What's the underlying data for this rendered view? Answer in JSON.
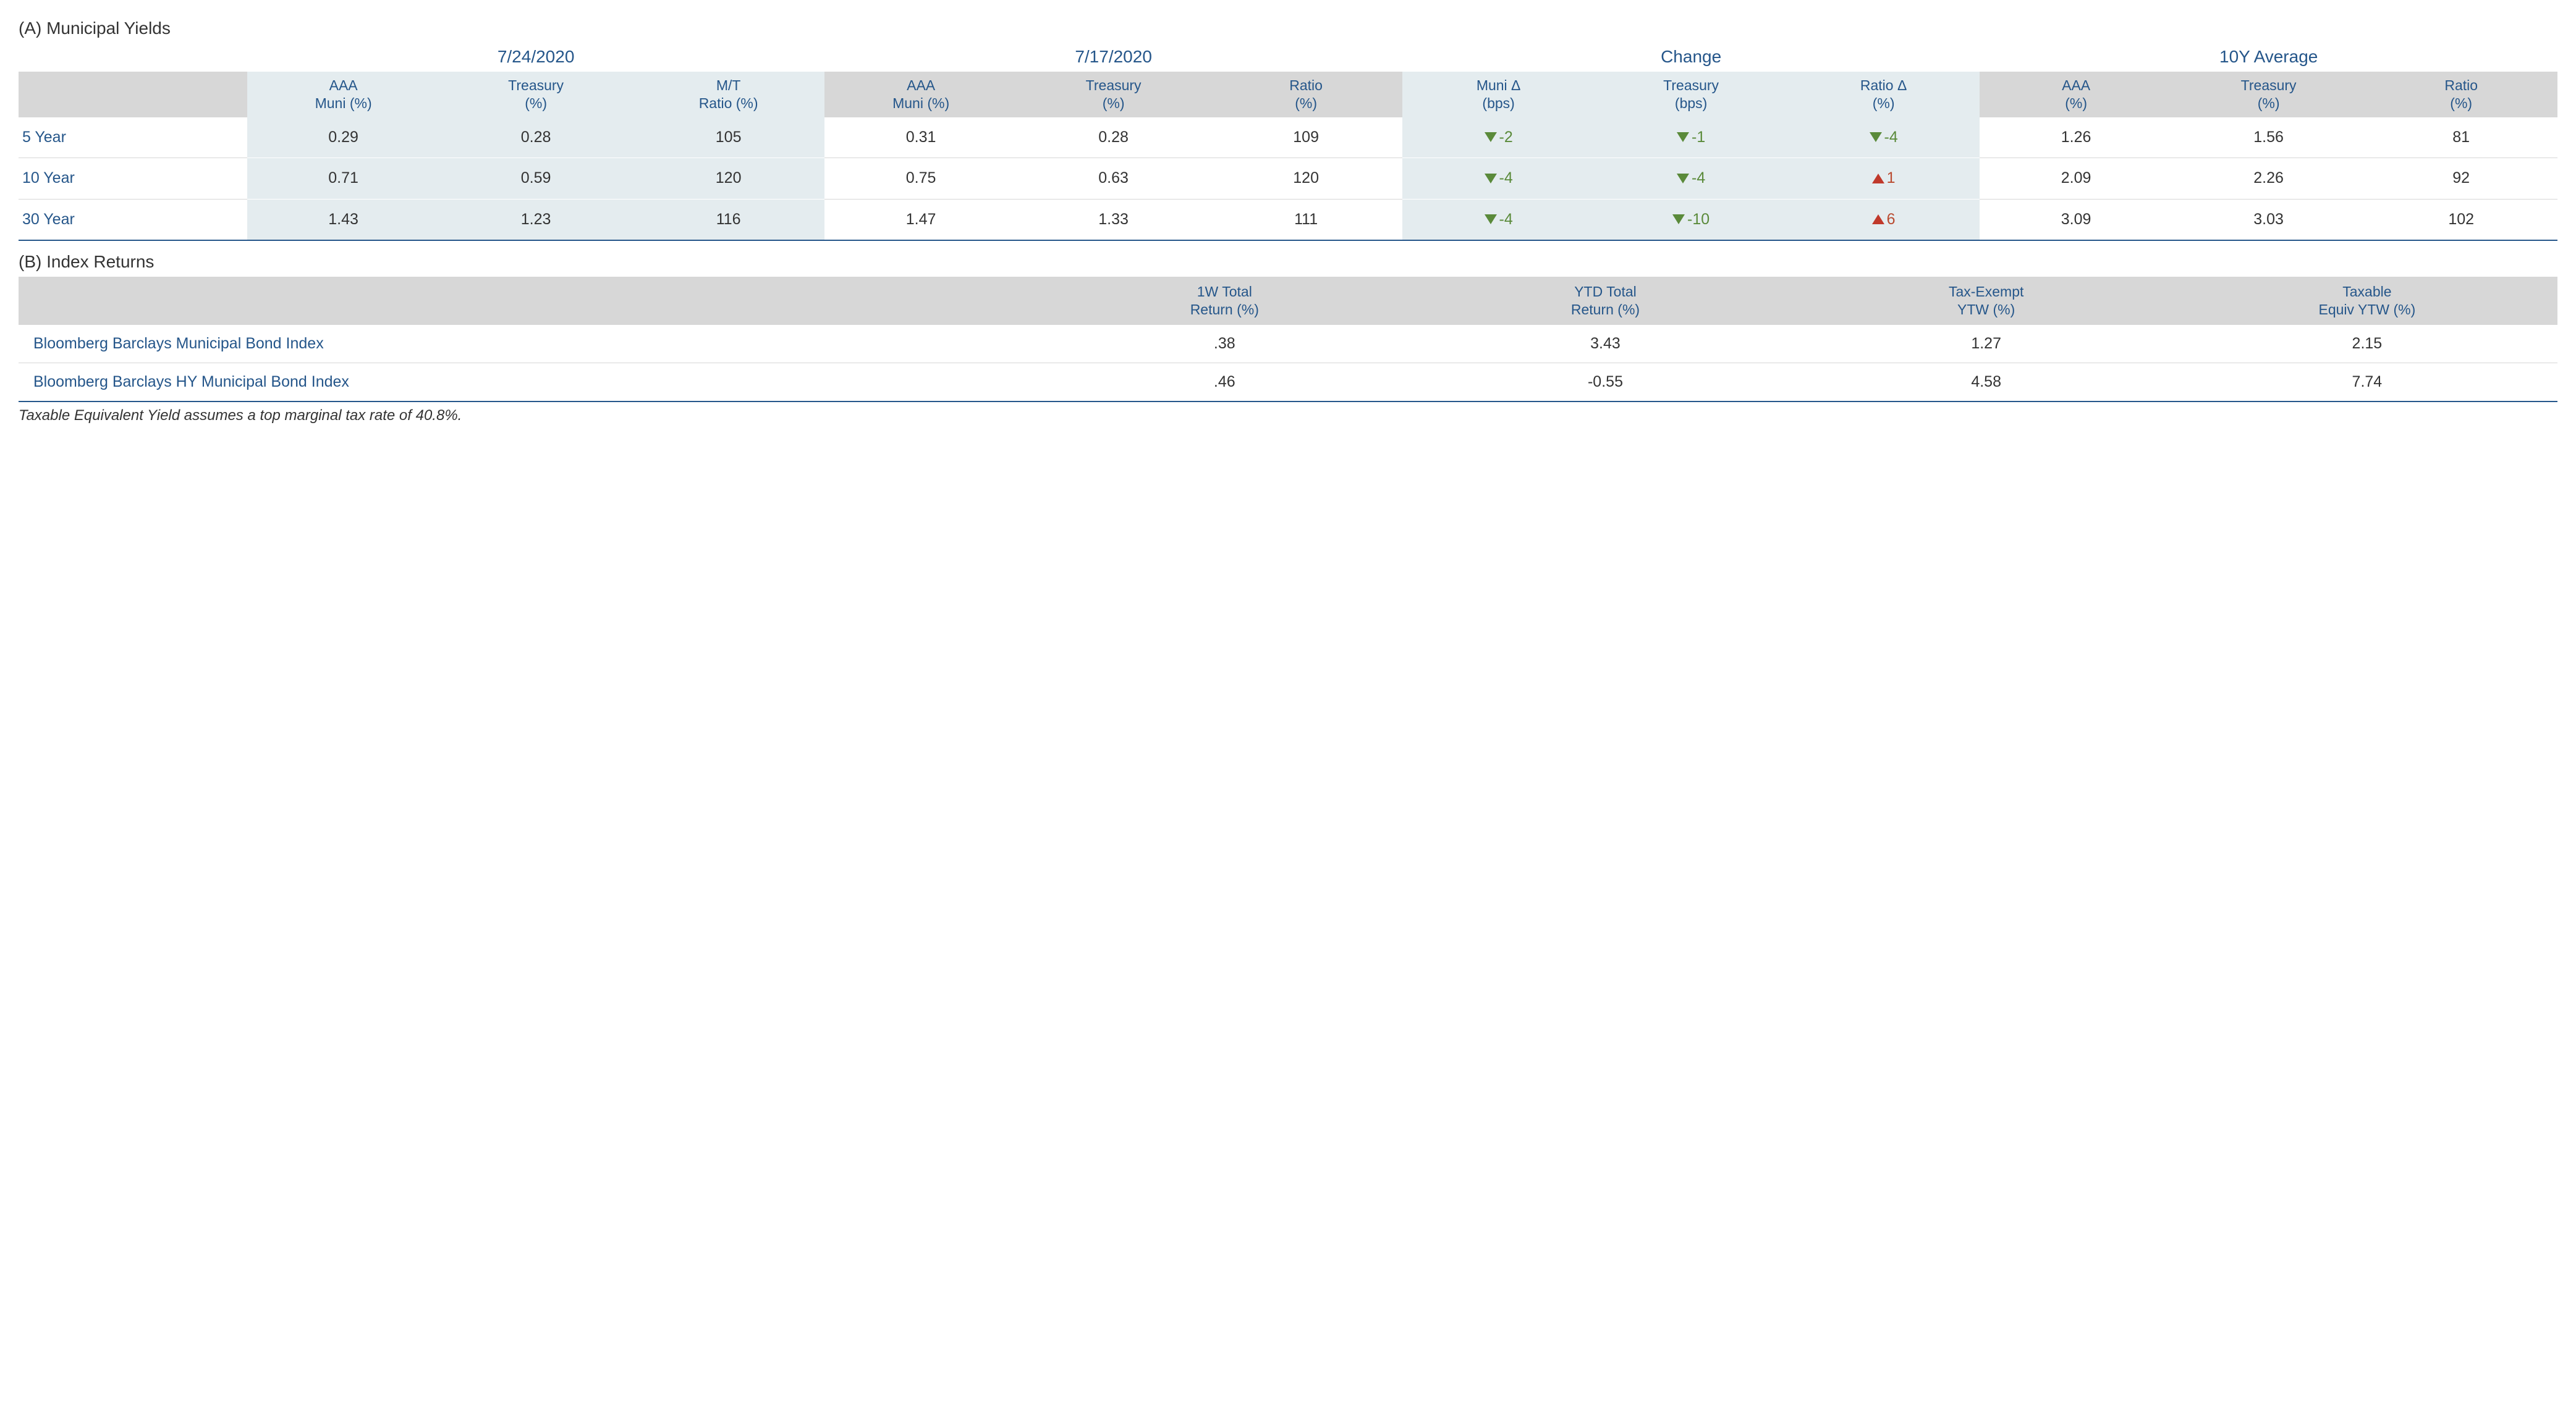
{
  "colors": {
    "header_text": "#25568a",
    "header_bg": "#d7d7d7",
    "shade_bg": "#e4ecef",
    "row_divider": "#d7d7d7",
    "bottom_rule": "#25568a",
    "down_color": "#5a8a3a",
    "up_color": "#c0392b",
    "body_text": "#333333",
    "background": "#ffffff"
  },
  "typography": {
    "section_title_pt": 28,
    "group_header_pt": 28,
    "col_header_pt": 23,
    "cell_pt": 25,
    "footnote_pt": 24,
    "font_family": "Myriad Pro / Segoe UI / Arial"
  },
  "tableA": {
    "title": "(A) Municipal Yields",
    "groups": [
      "7/24/2020",
      "7/17/2020",
      "Change",
      "10Y Average"
    ],
    "columns": {
      "g1": [
        "AAA Muni (%)",
        "Treasury (%)",
        "M/T Ratio (%)"
      ],
      "g2": [
        "AAA Muni (%)",
        "Treasury (%)",
        "Ratio (%)"
      ],
      "g3": [
        "Muni Δ (bps)",
        "Treasury (bps)",
        "Ratio Δ (%)"
      ],
      "g4": [
        "AAA (%)",
        "Treasury (%)",
        "Ratio (%)"
      ]
    },
    "column_headers_split": {
      "g1": [
        [
          "AAA",
          "Muni (%)"
        ],
        [
          "Treasury",
          "(%)"
        ],
        [
          "M/T",
          "Ratio (%)"
        ]
      ],
      "g2": [
        [
          "AAA",
          "Muni (%)"
        ],
        [
          "Treasury",
          "(%)"
        ],
        [
          "Ratio",
          "(%)"
        ]
      ],
      "g3": [
        [
          "Muni Δ",
          "(bps)"
        ],
        [
          "Treasury",
          "(bps)"
        ],
        [
          "Ratio Δ",
          "(%)"
        ]
      ],
      "g4": [
        [
          "AAA",
          "(%)"
        ],
        [
          "Treasury",
          "(%)"
        ],
        [
          "Ratio",
          "(%)"
        ]
      ]
    },
    "rows": [
      {
        "label": "5 Year",
        "g1": [
          "0.29",
          "0.28",
          "105"
        ],
        "g2": [
          "0.31",
          "0.28",
          "109"
        ],
        "g3": [
          {
            "dir": "down",
            "val": "-2"
          },
          {
            "dir": "down",
            "val": "-1"
          },
          {
            "dir": "down",
            "val": "-4"
          }
        ],
        "g4": [
          "1.26",
          "1.56",
          "81"
        ]
      },
      {
        "label": "10 Year",
        "g1": [
          "0.71",
          "0.59",
          "120"
        ],
        "g2": [
          "0.75",
          "0.63",
          "120"
        ],
        "g3": [
          {
            "dir": "down",
            "val": "-4"
          },
          {
            "dir": "down",
            "val": "-4"
          },
          {
            "dir": "up",
            "val": "1"
          }
        ],
        "g4": [
          "2.09",
          "2.26",
          "92"
        ]
      },
      {
        "label": "30 Year",
        "g1": [
          "1.43",
          "1.23",
          "116"
        ],
        "g2": [
          "1.47",
          "1.33",
          "111"
        ],
        "g3": [
          {
            "dir": "down",
            "val": "-4"
          },
          {
            "dir": "down",
            "val": "-10"
          },
          {
            "dir": "up",
            "val": "6"
          }
        ],
        "g4": [
          "3.09",
          "3.03",
          "102"
        ]
      }
    ]
  },
  "tableB": {
    "title": "(B) Index Returns",
    "columns_split": [
      [
        "1W Total",
        "Return (%)"
      ],
      [
        "YTD Total",
        "Return (%)"
      ],
      [
        "Tax-Exempt",
        "YTW (%)"
      ],
      [
        "Taxable",
        "Equiv YTW (%)"
      ]
    ],
    "rows": [
      {
        "name": "Bloomberg Barclays Municipal Bond Index",
        "vals": [
          ".38",
          "3.43",
          "1.27",
          "2.15"
        ]
      },
      {
        "name": "Bloomberg Barclays HY Municipal Bond Index",
        "vals": [
          ".46",
          "-0.55",
          "4.58",
          "7.74"
        ]
      }
    ]
  },
  "footnote": "Taxable Equivalent Yield assumes a top marginal tax rate of 40.8%."
}
